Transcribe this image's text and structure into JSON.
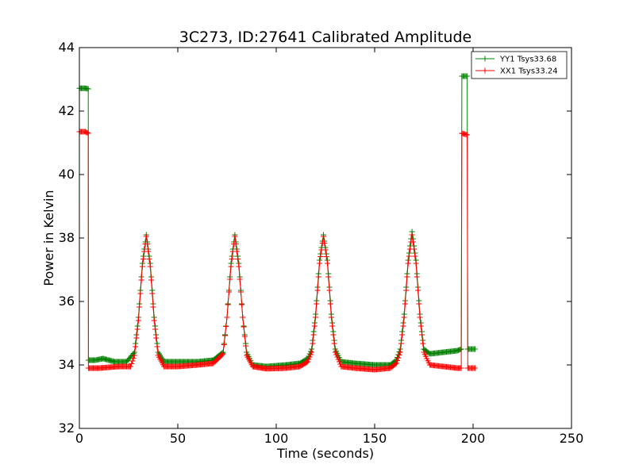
{
  "chart_data": {
    "type": "line",
    "title": "3C273, ID:27641 Calibrated Amplitude",
    "xlabel": "Time (seconds)",
    "ylabel": "Power in Kelvin",
    "xlim": [
      0,
      250
    ],
    "ylim": [
      32,
      44
    ],
    "xticks": [
      "0",
      "50",
      "100",
      "150",
      "200",
      "250"
    ],
    "yticks": [
      "32",
      "34",
      "36",
      "38",
      "40",
      "42",
      "44"
    ],
    "grid": false,
    "legend_position": "top-right",
    "marker": "+",
    "series": [
      {
        "name": "YY1 Tsys33.68",
        "color": "#008000",
        "points": [
          [
            0,
            42.72
          ],
          [
            3,
            42.72
          ],
          [
            4.5,
            42.7
          ],
          [
            4.6,
            34.15
          ],
          [
            8,
            34.15
          ],
          [
            12,
            34.2
          ],
          [
            18,
            34.1
          ],
          [
            24,
            34.1
          ],
          [
            28,
            34.4
          ],
          [
            30,
            35.5
          ],
          [
            32,
            37.2
          ],
          [
            34,
            38.1
          ],
          [
            36,
            37.2
          ],
          [
            38,
            35.5
          ],
          [
            40,
            34.4
          ],
          [
            43,
            34.1
          ],
          [
            50,
            34.1
          ],
          [
            60,
            34.1
          ],
          [
            68,
            34.15
          ],
          [
            73,
            34.4
          ],
          [
            75,
            35.5
          ],
          [
            77,
            37.2
          ],
          [
            79,
            38.1
          ],
          [
            81,
            37.2
          ],
          [
            83,
            35.5
          ],
          [
            85,
            34.4
          ],
          [
            88,
            34.0
          ],
          [
            95,
            33.95
          ],
          [
            105,
            34.0
          ],
          [
            112,
            34.05
          ],
          [
            116,
            34.2
          ],
          [
            118,
            34.5
          ],
          [
            120,
            35.6
          ],
          [
            122,
            37.3
          ],
          [
            124,
            38.1
          ],
          [
            126,
            37.3
          ],
          [
            128,
            35.6
          ],
          [
            130,
            34.5
          ],
          [
            133,
            34.1
          ],
          [
            140,
            34.05
          ],
          [
            150,
            34.0
          ],
          [
            158,
            34.0
          ],
          [
            161,
            34.15
          ],
          [
            163,
            34.5
          ],
          [
            165,
            35.6
          ],
          [
            167,
            37.3
          ],
          [
            169,
            38.2
          ],
          [
            171,
            37.3
          ],
          [
            173,
            35.6
          ],
          [
            175,
            34.5
          ],
          [
            178,
            34.35
          ],
          [
            185,
            34.4
          ],
          [
            192,
            34.45
          ],
          [
            194,
            34.5
          ],
          [
            194.3,
            43.1
          ],
          [
            197,
            43.1
          ],
          [
            197.3,
            34.5
          ],
          [
            201,
            34.5
          ]
        ]
      },
      {
        "name": "XX1 Tsys33.24",
        "color": "#ff0000",
        "points": [
          [
            0,
            41.35
          ],
          [
            3,
            41.35
          ],
          [
            4.5,
            41.3
          ],
          [
            4.6,
            33.9
          ],
          [
            10,
            33.9
          ],
          [
            20,
            33.95
          ],
          [
            26,
            33.95
          ],
          [
            28,
            34.3
          ],
          [
            30,
            35.4
          ],
          [
            32,
            37.1
          ],
          [
            34,
            38.05
          ],
          [
            36,
            37.1
          ],
          [
            38,
            35.4
          ],
          [
            40,
            34.3
          ],
          [
            43,
            33.95
          ],
          [
            50,
            33.95
          ],
          [
            60,
            34.0
          ],
          [
            68,
            34.05
          ],
          [
            73,
            34.35
          ],
          [
            75,
            35.5
          ],
          [
            77,
            37.1
          ],
          [
            79,
            38.05
          ],
          [
            81,
            37.1
          ],
          [
            83,
            35.5
          ],
          [
            85,
            34.3
          ],
          [
            88,
            33.95
          ],
          [
            95,
            33.88
          ],
          [
            105,
            33.9
          ],
          [
            112,
            33.95
          ],
          [
            116,
            34.1
          ],
          [
            118,
            34.4
          ],
          [
            120,
            35.5
          ],
          [
            122,
            37.2
          ],
          [
            124,
            38.05
          ],
          [
            126,
            37.2
          ],
          [
            128,
            35.5
          ],
          [
            130,
            34.4
          ],
          [
            133,
            33.95
          ],
          [
            140,
            33.9
          ],
          [
            150,
            33.85
          ],
          [
            158,
            33.9
          ],
          [
            161,
            34.05
          ],
          [
            163,
            34.4
          ],
          [
            165,
            35.5
          ],
          [
            167,
            37.2
          ],
          [
            169,
            38.1
          ],
          [
            171,
            37.2
          ],
          [
            173,
            35.5
          ],
          [
            175,
            34.4
          ],
          [
            178,
            34.0
          ],
          [
            185,
            33.95
          ],
          [
            192,
            33.9
          ],
          [
            194,
            33.9
          ],
          [
            194.3,
            41.3
          ],
          [
            197,
            41.25
          ],
          [
            197.3,
            33.9
          ],
          [
            201,
            33.9
          ]
        ]
      }
    ]
  }
}
